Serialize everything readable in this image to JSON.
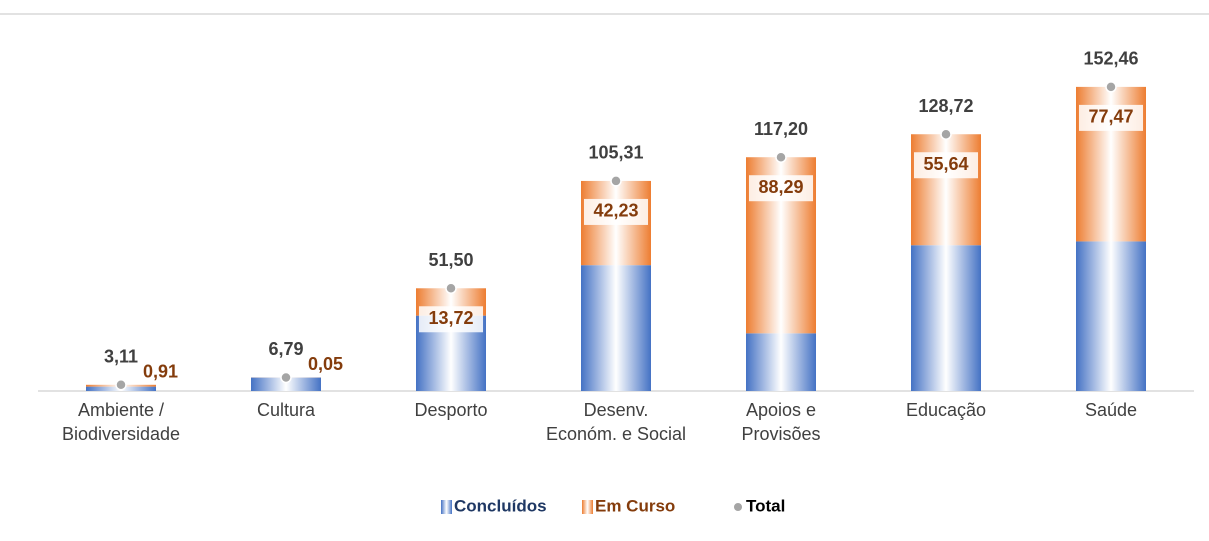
{
  "chart_data": {
    "type": "bar",
    "stacked": true,
    "categories": [
      "Ambiente /\nBiodiversidade",
      "Cultura",
      "Desporto",
      "Desenv.\nEconóm. e Social",
      "Apoios e\nProvisões",
      "Educação",
      "Saúde"
    ],
    "series": [
      {
        "name": "Concluídos",
        "color": "#4472c4",
        "values": [
          2.2,
          6.74,
          37.78,
          63.08,
          28.91,
          73.08,
          74.99
        ]
      },
      {
        "name": "Em Curso",
        "color": "#ed7d31",
        "values": [
          0.91,
          0.05,
          13.72,
          42.23,
          88.29,
          55.64,
          77.47
        ],
        "value_labels": [
          "0,91",
          "0,05",
          "13,72",
          "42,23",
          "88,29",
          "55,64",
          "77,47"
        ]
      },
      {
        "name": "Total",
        "type": "scatter",
        "color": "#a5a5a5",
        "values": [
          3.11,
          6.79,
          51.5,
          105.31,
          117.2,
          128.72,
          152.46
        ],
        "value_labels": [
          "3,11",
          "6,79",
          "51,50",
          "105,31",
          "117,20",
          "128,72",
          "152,46"
        ]
      }
    ],
    "ylim": [
      0,
      189
    ],
    "legend": "bottom"
  }
}
